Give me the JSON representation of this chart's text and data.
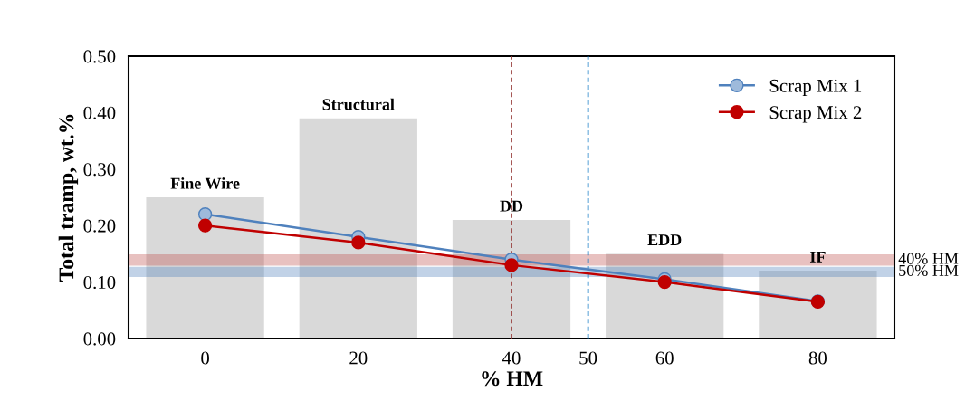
{
  "chart_data": {
    "type": "line",
    "xlabel": "% HM",
    "ylabel": "Total tramp, wt.%",
    "x": [
      0,
      20,
      40,
      60,
      80
    ],
    "series": [
      {
        "type": "bar",
        "color": "#d9d9d9",
        "values": [
          0.25,
          0.39,
          0.21,
          0.15,
          0.12
        ]
      },
      {
        "name": "Scrap Mix 1",
        "color": "#4f81bd",
        "values": [
          0.22,
          0.18,
          0.14,
          0.105,
          0.066
        ]
      },
      {
        "name": "Scrap Mix 2",
        "color": "#c00000",
        "values": [
          0.2,
          0.17,
          0.13,
          0.1,
          0.065
        ]
      }
    ],
    "annotations": [
      {
        "text": "Fine Wire",
        "x": 0,
        "y": 0.25
      },
      {
        "text": "Structural",
        "x": 20,
        "y": 0.39
      },
      {
        "text": "DD",
        "x": 40,
        "y": 0.21
      },
      {
        "text": "EDD",
        "x": 60,
        "y": 0.15
      },
      {
        "text": "IF",
        "x": 80,
        "y": 0.12
      }
    ],
    "bands": [
      {
        "axis": "y",
        "from": 0.13,
        "to": 0.148,
        "label": "40% HM",
        "color": "#c0504d"
      },
      {
        "axis": "y",
        "from": 0.11,
        "to": 0.126,
        "label": "50% HM",
        "color": "#4f81bd"
      }
    ],
    "ref_lines": [
      {
        "axis": "x",
        "value": 40,
        "color": "#943634",
        "line_style": "dashed"
      },
      {
        "axis": "x",
        "value": 50,
        "color": "#0070c0",
        "line_style": "dashed"
      }
    ],
    "xlim": [
      -10,
      90
    ],
    "xticks": [
      0,
      20,
      40,
      50,
      60,
      80
    ],
    "ylim": [
      0,
      0.5
    ],
    "yticks": [
      {
        "value": 0,
        "label": "0.00"
      },
      {
        "value": 0.1,
        "label": "0.10"
      },
      {
        "value": 0.2,
        "label": "0.20"
      },
      {
        "value": 0.3,
        "label": "0.30"
      },
      {
        "value": 0.4,
        "label": "0.40"
      },
      {
        "value": 0.5,
        "label": "0.50"
      }
    ],
    "legend": "top right",
    "grid": false,
    "marker": "circle",
    "line_style": "solid"
  }
}
